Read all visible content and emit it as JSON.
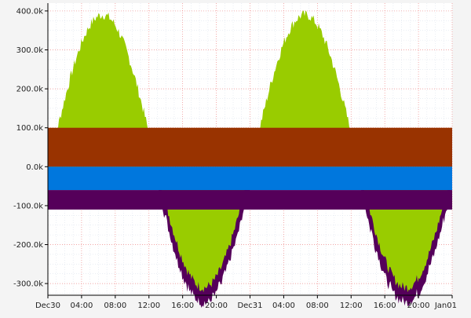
{
  "chart_data": {
    "type": "area",
    "title": "",
    "xlabel": "",
    "ylabel": "",
    "x_range": [
      "2015-12-30T00:00",
      "2016-01-01T00:00"
    ],
    "ylim": [
      -330000,
      420000
    ],
    "grid": true,
    "legend": "none",
    "x_tick_labels": [
      "Dec30",
      "04:00",
      "08:00",
      "12:00",
      "16:00",
      "20:00",
      "Dec31",
      "04:00",
      "08:00",
      "12:00",
      "16:00",
      "20:00",
      "Jan01"
    ],
    "y_tick_labels": [
      "400.0k",
      "300.0k",
      "200.0k",
      "100.0k",
      "0.0k",
      "-100.0k",
      "-200.0k",
      "-300.0k"
    ],
    "y_tick_values": [
      400000,
      300000,
      200000,
      100000,
      0,
      -100000,
      -200000,
      -300000
    ],
    "series": [
      {
        "color": "#99cc00",
        "stack_order": 4,
        "shape": "sine wave, amplitude ~330k, period 24h, rising zero-cross ~12:30 each day, noisy edge",
        "peak": 410000,
        "trough": -310000
      },
      {
        "color": "#993300",
        "stack_order": 3,
        "band": [
          0,
          100000
        ]
      },
      {
        "color": "#0077dd",
        "stack_order": 2,
        "band": [
          -60000,
          0
        ]
      },
      {
        "color": "#55005a",
        "stack_order": 1,
        "band": [
          -110000,
          -60000
        ],
        "note": "also traces lower edge of green wave"
      }
    ]
  }
}
